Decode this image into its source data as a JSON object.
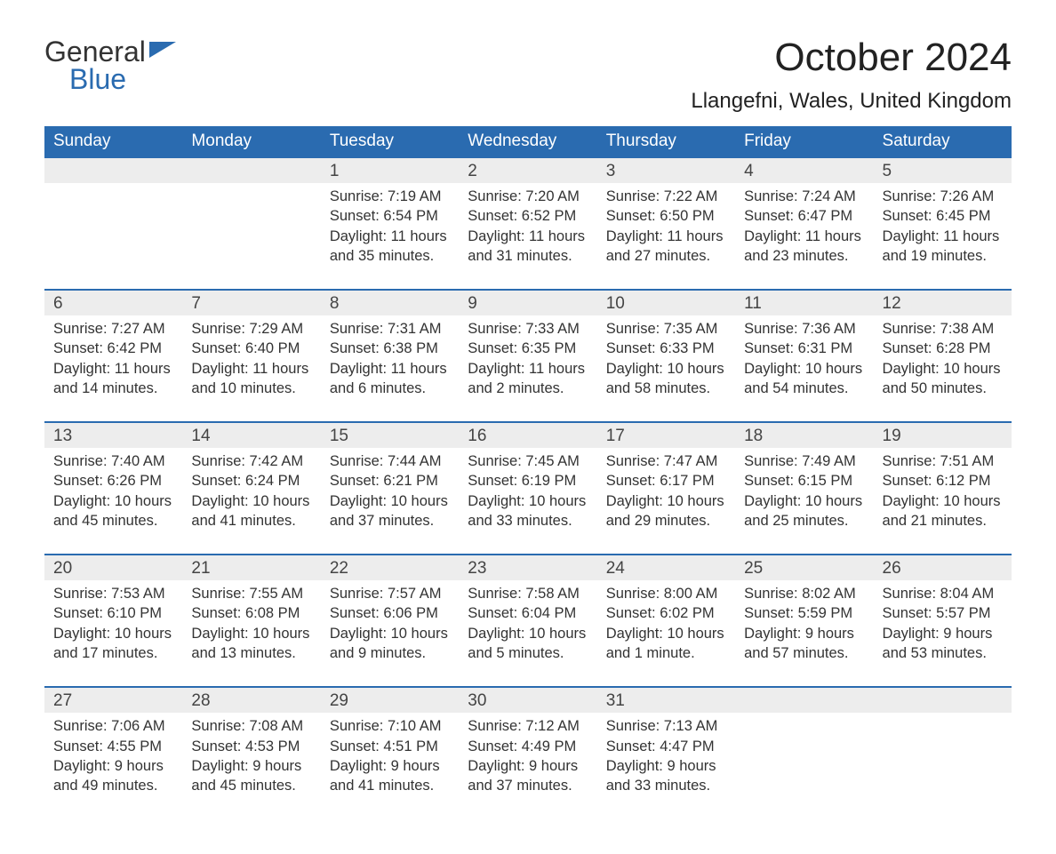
{
  "logo": {
    "text1": "General",
    "text2": "Blue"
  },
  "title": "October 2024",
  "location": "Llangefni, Wales, United Kingdom",
  "colors": {
    "header_bg": "#2a6bb0",
    "header_text": "#ffffff",
    "daynum_bg": "#ededed",
    "text": "#333333",
    "border": "#2a6bb0"
  },
  "typography": {
    "title_fontsize": 44,
    "location_fontsize": 24,
    "dayheader_fontsize": 19,
    "daynum_fontsize": 19,
    "body_fontsize": 16.5,
    "font_family": "Arial"
  },
  "day_headers": [
    "Sunday",
    "Monday",
    "Tuesday",
    "Wednesday",
    "Thursday",
    "Friday",
    "Saturday"
  ],
  "weeks": [
    [
      null,
      null,
      {
        "n": "1",
        "sunrise": "7:19 AM",
        "sunset": "6:54 PM",
        "daylight": "11 hours and 35 minutes."
      },
      {
        "n": "2",
        "sunrise": "7:20 AM",
        "sunset": "6:52 PM",
        "daylight": "11 hours and 31 minutes."
      },
      {
        "n": "3",
        "sunrise": "7:22 AM",
        "sunset": "6:50 PM",
        "daylight": "11 hours and 27 minutes."
      },
      {
        "n": "4",
        "sunrise": "7:24 AM",
        "sunset": "6:47 PM",
        "daylight": "11 hours and 23 minutes."
      },
      {
        "n": "5",
        "sunrise": "7:26 AM",
        "sunset": "6:45 PM",
        "daylight": "11 hours and 19 minutes."
      }
    ],
    [
      {
        "n": "6",
        "sunrise": "7:27 AM",
        "sunset": "6:42 PM",
        "daylight": "11 hours and 14 minutes."
      },
      {
        "n": "7",
        "sunrise": "7:29 AM",
        "sunset": "6:40 PM",
        "daylight": "11 hours and 10 minutes."
      },
      {
        "n": "8",
        "sunrise": "7:31 AM",
        "sunset": "6:38 PM",
        "daylight": "11 hours and 6 minutes."
      },
      {
        "n": "9",
        "sunrise": "7:33 AM",
        "sunset": "6:35 PM",
        "daylight": "11 hours and 2 minutes."
      },
      {
        "n": "10",
        "sunrise": "7:35 AM",
        "sunset": "6:33 PM",
        "daylight": "10 hours and 58 minutes."
      },
      {
        "n": "11",
        "sunrise": "7:36 AM",
        "sunset": "6:31 PM",
        "daylight": "10 hours and 54 minutes."
      },
      {
        "n": "12",
        "sunrise": "7:38 AM",
        "sunset": "6:28 PM",
        "daylight": "10 hours and 50 minutes."
      }
    ],
    [
      {
        "n": "13",
        "sunrise": "7:40 AM",
        "sunset": "6:26 PM",
        "daylight": "10 hours and 45 minutes."
      },
      {
        "n": "14",
        "sunrise": "7:42 AM",
        "sunset": "6:24 PM",
        "daylight": "10 hours and 41 minutes."
      },
      {
        "n": "15",
        "sunrise": "7:44 AM",
        "sunset": "6:21 PM",
        "daylight": "10 hours and 37 minutes."
      },
      {
        "n": "16",
        "sunrise": "7:45 AM",
        "sunset": "6:19 PM",
        "daylight": "10 hours and 33 minutes."
      },
      {
        "n": "17",
        "sunrise": "7:47 AM",
        "sunset": "6:17 PM",
        "daylight": "10 hours and 29 minutes."
      },
      {
        "n": "18",
        "sunrise": "7:49 AM",
        "sunset": "6:15 PM",
        "daylight": "10 hours and 25 minutes."
      },
      {
        "n": "19",
        "sunrise": "7:51 AM",
        "sunset": "6:12 PM",
        "daylight": "10 hours and 21 minutes."
      }
    ],
    [
      {
        "n": "20",
        "sunrise": "7:53 AM",
        "sunset": "6:10 PM",
        "daylight": "10 hours and 17 minutes."
      },
      {
        "n": "21",
        "sunrise": "7:55 AM",
        "sunset": "6:08 PM",
        "daylight": "10 hours and 13 minutes."
      },
      {
        "n": "22",
        "sunrise": "7:57 AM",
        "sunset": "6:06 PM",
        "daylight": "10 hours and 9 minutes."
      },
      {
        "n": "23",
        "sunrise": "7:58 AM",
        "sunset": "6:04 PM",
        "daylight": "10 hours and 5 minutes."
      },
      {
        "n": "24",
        "sunrise": "8:00 AM",
        "sunset": "6:02 PM",
        "daylight": "10 hours and 1 minute."
      },
      {
        "n": "25",
        "sunrise": "8:02 AM",
        "sunset": "5:59 PM",
        "daylight": "9 hours and 57 minutes."
      },
      {
        "n": "26",
        "sunrise": "8:04 AM",
        "sunset": "5:57 PM",
        "daylight": "9 hours and 53 minutes."
      }
    ],
    [
      {
        "n": "27",
        "sunrise": "7:06 AM",
        "sunset": "4:55 PM",
        "daylight": "9 hours and 49 minutes."
      },
      {
        "n": "28",
        "sunrise": "7:08 AM",
        "sunset": "4:53 PM",
        "daylight": "9 hours and 45 minutes."
      },
      {
        "n": "29",
        "sunrise": "7:10 AM",
        "sunset": "4:51 PM",
        "daylight": "9 hours and 41 minutes."
      },
      {
        "n": "30",
        "sunrise": "7:12 AM",
        "sunset": "4:49 PM",
        "daylight": "9 hours and 37 minutes."
      },
      {
        "n": "31",
        "sunrise": "7:13 AM",
        "sunset": "4:47 PM",
        "daylight": "9 hours and 33 minutes."
      },
      null,
      null
    ]
  ],
  "labels": {
    "sunrise": "Sunrise: ",
    "sunset": "Sunset: ",
    "daylight": "Daylight: "
  }
}
